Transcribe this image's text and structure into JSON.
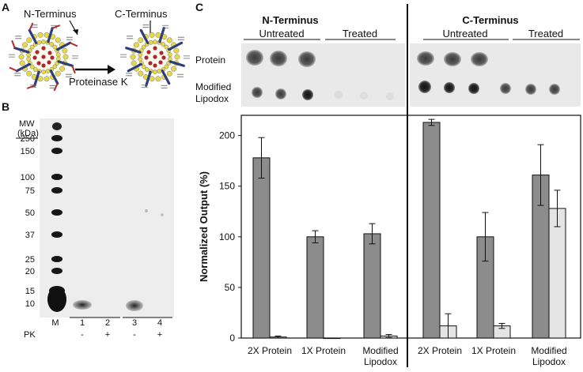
{
  "panel_a": {
    "letter": "A",
    "label_n": "N-Terminus",
    "label_c": "C-Terminus",
    "arrow_label": "Proteinase K"
  },
  "panel_b": {
    "letter": "B",
    "mw_title_1": "MW",
    "mw_title_2": "(kDa)",
    "mw_values": [
      "250",
      "150",
      "100",
      "75",
      "50",
      "37",
      "25",
      "20",
      "15",
      "10"
    ],
    "lane_labels": [
      "M",
      "1",
      "2",
      "3",
      "4"
    ],
    "pk_label": "PK",
    "pk_values": [
      "-",
      "+",
      "-",
      "+"
    ]
  },
  "panel_c": {
    "letter": "C",
    "group_titles": [
      "N-Terminus",
      "C-Terminus"
    ],
    "subgroups": [
      "Untreated",
      "Treated",
      "Untreated",
      "Treated"
    ],
    "row_label_protein": "Protein",
    "row_label_lipodox_1": "Modified",
    "row_label_lipodox_2": "Lipodox"
  },
  "chart_data": {
    "type": "bar",
    "ylabel": "Normalized Output (%)",
    "ylim": [
      0,
      220
    ],
    "yticks": [
      0,
      50,
      100,
      150,
      200
    ],
    "groups": [
      {
        "name": "N-Terminus",
        "categories": [
          "2X Protein",
          "1X Protein",
          "Modified Lipodox"
        ],
        "series": [
          {
            "name": "Untreated",
            "values": [
              178,
              100,
              103
            ],
            "errors": [
              20,
              6,
              10
            ]
          },
          {
            "name": "Treated",
            "values": [
              1,
              0,
              2
            ],
            "errors": [
              1,
              0,
              1.5
            ]
          }
        ]
      },
      {
        "name": "C-Terminus",
        "categories": [
          "2X Protein",
          "1X Protein",
          "Modified Lipodox"
        ],
        "series": [
          {
            "name": "Untreated",
            "values": [
              213,
              100,
              161
            ],
            "errors": [
              3,
              24,
              30
            ]
          },
          {
            "name": "Treated",
            "values": [
              12,
              12,
              128
            ],
            "errors": [
              12,
              2.5,
              18
            ]
          }
        ]
      }
    ],
    "colors": {
      "untreated": "#8c8c8c",
      "treated": "#e4e4e4"
    }
  }
}
